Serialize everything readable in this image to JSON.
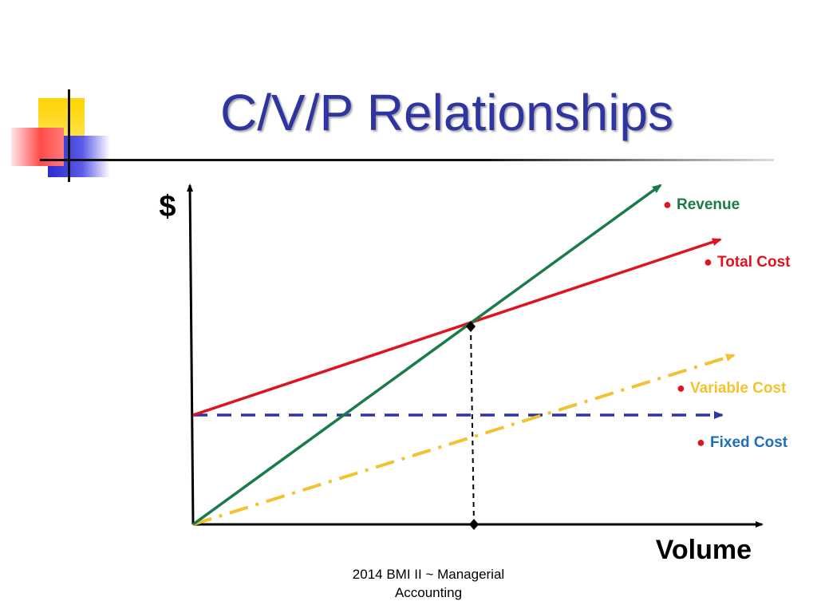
{
  "slide": {
    "title": "C/V/P Relationships",
    "footer_line1": "2014 BMI II ~ Managerial",
    "footer_line2": "Accounting"
  },
  "diagram": {
    "y_axis_label": "$",
    "x_axis_label": "Volume",
    "bullet": "●",
    "lines": {
      "revenue": {
        "label": "Revenue",
        "color": "#1a7a4a",
        "label_color": "#1a7a4a"
      },
      "total_cost": {
        "label": "Total Cost",
        "color": "#e0141e",
        "label_color": "#e0141e"
      },
      "variable_cost": {
        "label": "Variable Cost",
        "color": "#f2c230",
        "label_color": "#f2c230"
      },
      "fixed_cost": {
        "label": "Fixed Cost",
        "color": "#2e35a0",
        "label_color": "#1f6fb8"
      }
    },
    "bullet_color": "#e0141e"
  }
}
